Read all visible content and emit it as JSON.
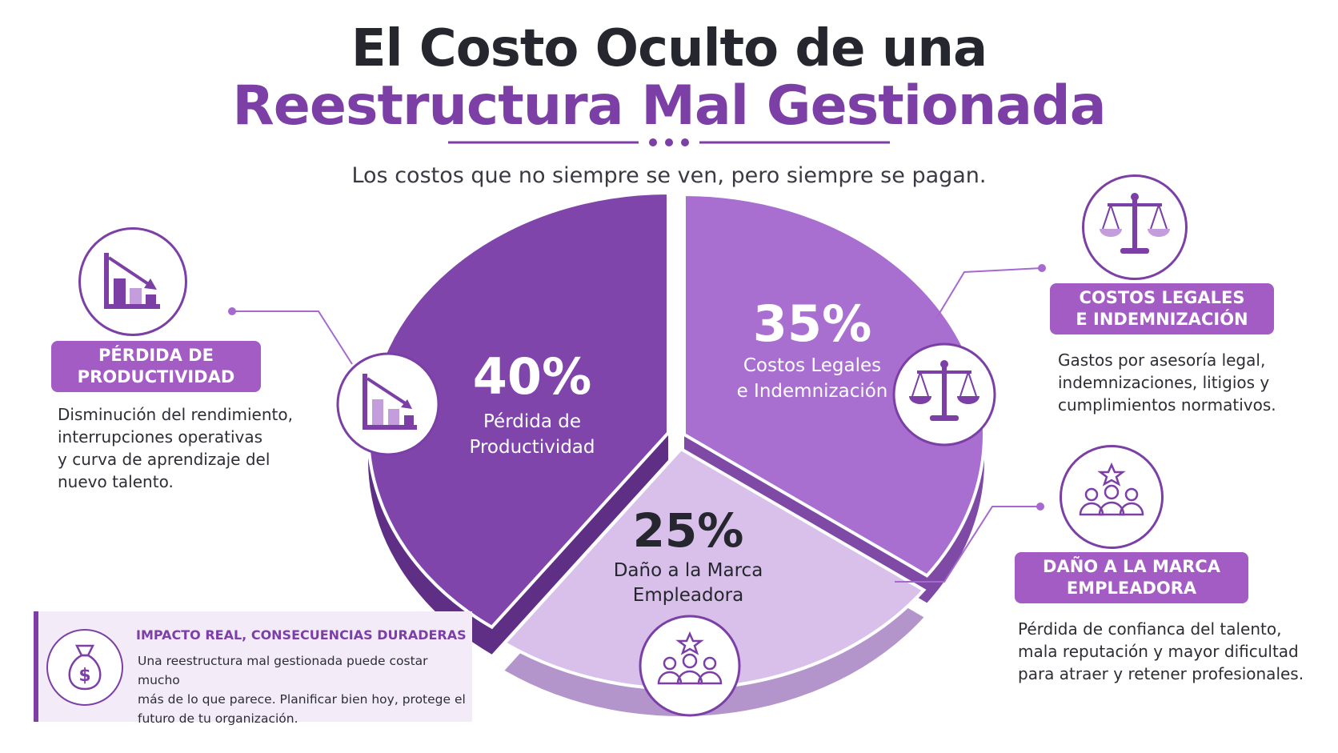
{
  "header": {
    "title_line1": "El Costo Oculto de una",
    "title_line2": "Reestructura Mal Gestionada",
    "subtitle": "Los costos que no siempre se ven, pero siempre se pagan."
  },
  "colors": {
    "dark_purple": "#7b3fa6",
    "mid_purple": "#a569cf",
    "light_purple": "#d6bde8",
    "label_purple": "#a25cc3"
  },
  "chart_data": {
    "type": "pie",
    "categories": [
      "Pérdida de Productividad",
      "Costos Legales e Indemnización",
      "Daño a la Marca Empleadora"
    ],
    "values": [
      40,
      35,
      25
    ],
    "value_labels": [
      "40%",
      "35%",
      "25%"
    ],
    "slice_label_lines": [
      [
        "Pérdida de",
        "Productividad"
      ],
      [
        "Costos Legales",
        "e Indemnización"
      ],
      [
        "Daño a la Marca",
        "Empleadora"
      ]
    ],
    "slice_colors": [
      "#7f45ab",
      "#a86fd1",
      "#d8c0ea"
    ],
    "slice_icons": [
      "bar-chart-down-icon",
      "scales-icon",
      "people-star-icon"
    ]
  },
  "callouts": {
    "productividad": {
      "label_line1": "PÉRDIDA DE",
      "label_line2": "PRODUCTIVIDAD",
      "desc_lines": [
        "Disminución del rendimiento,",
        "interrupciones operativas",
        "y curva de aprendizaje del",
        "nuevo talento."
      ],
      "icon": "bar-chart-down-icon"
    },
    "legales": {
      "label_line1": "COSTOS LEGALES",
      "label_line2": "E INDEMNIZACIÓN",
      "desc_lines": [
        "Gastos por asesoría legal,",
        "indemnizaciones, litigios y",
        "cumplimientos normativos."
      ],
      "icon": "scales-icon"
    },
    "marca": {
      "label_line1": "DAÑO A LA MARCA",
      "label_line2": "EMPLEADORA",
      "desc_lines": [
        "Pérdida de confianca del talento,",
        "mala reputación y mayor dificultad",
        "para atraer y retener profesionales."
      ],
      "icon": "people-star-icon"
    }
  },
  "impact": {
    "title": "IMPACTO REAL, CONSECUENCIAS DURADERAS",
    "text_lines": [
      "Una reestructura mal gestionada puede costar mucho",
      "más de lo que parece. Planificar bien hoy, protege el",
      "futuro de tu organización."
    ],
    "icon": "money-bag-icon",
    "icon_symbol": "$"
  }
}
